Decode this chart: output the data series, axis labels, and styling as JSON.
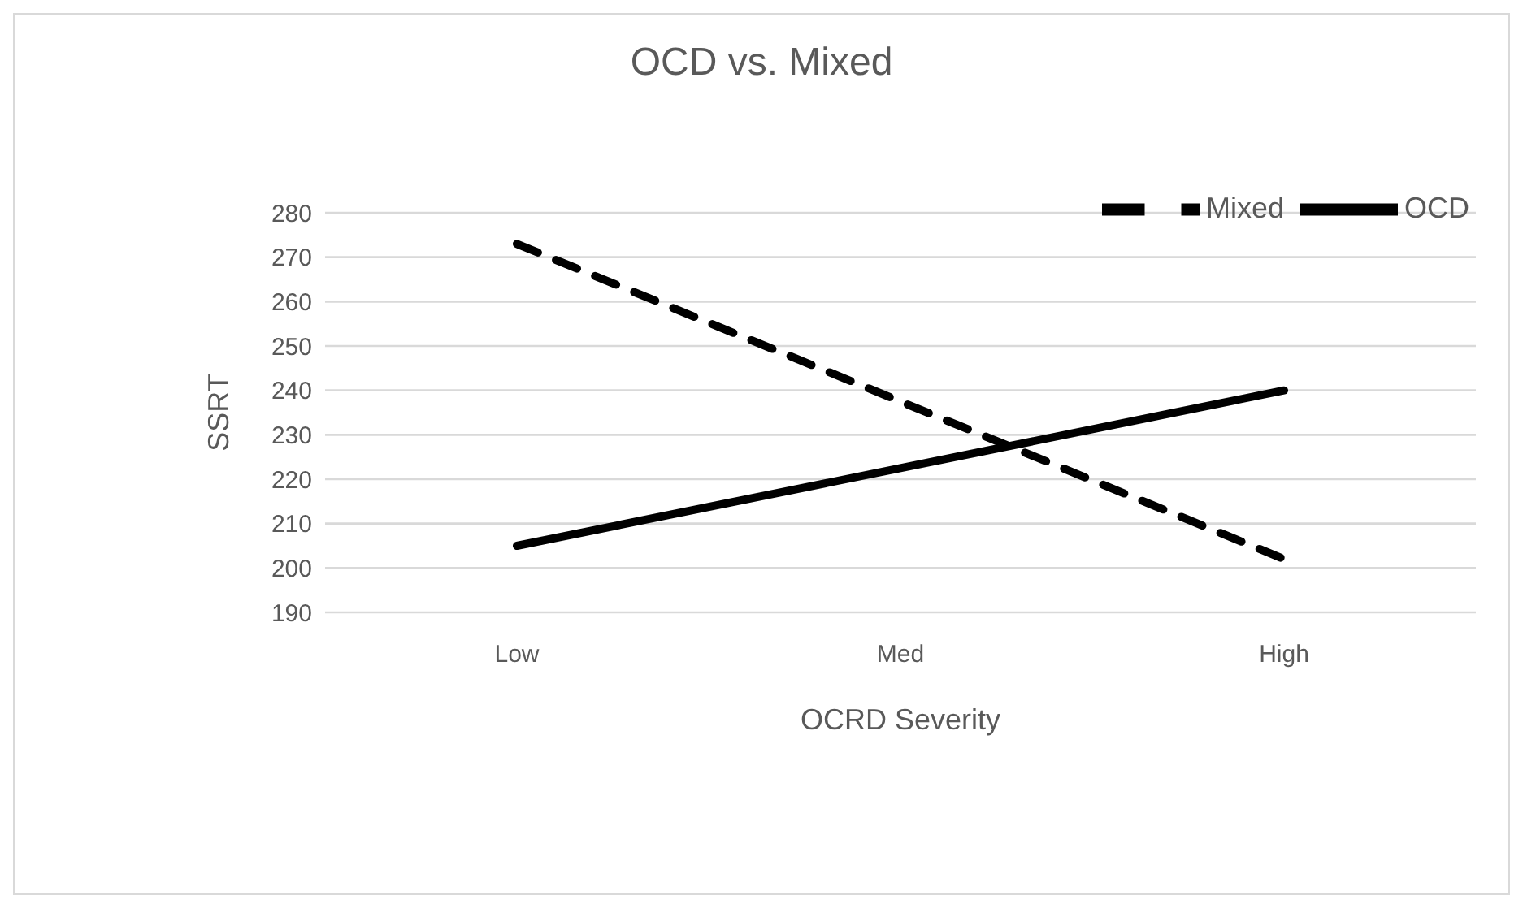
{
  "chart_data": {
    "type": "line",
    "title": "OCD vs. Mixed",
    "xlabel": "OCRD Severity",
    "ylabel": "SSRT",
    "categories": [
      "Low",
      "Med",
      "High"
    ],
    "series": [
      {
        "name": "Mixed",
        "color": "#000000",
        "line_style": "dashed",
        "values": [
          273,
          237.5,
          202
        ]
      },
      {
        "name": "OCD",
        "color": "#000000",
        "line_style": "solid",
        "values": [
          205,
          222.5,
          240
        ]
      }
    ],
    "ylim": [
      190,
      280
    ],
    "yticks": [
      190,
      200,
      210,
      220,
      230,
      240,
      250,
      260,
      270,
      280
    ],
    "grid": "y",
    "legend": "top right",
    "marker": "none"
  }
}
